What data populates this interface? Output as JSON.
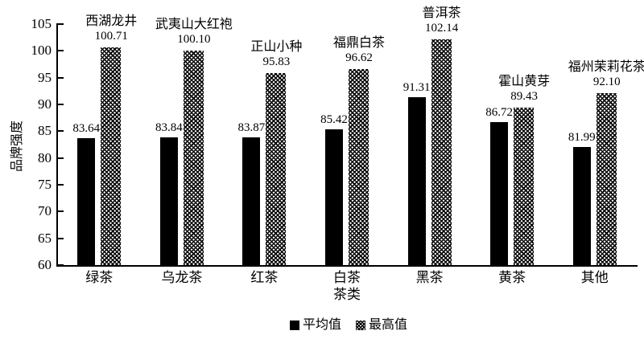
{
  "chart_data": {
    "type": "bar",
    "title": "",
    "xlabel": "茶类",
    "ylabel": "品牌强度",
    "ylim": [
      60,
      105
    ],
    "y_ticks": [
      60,
      65,
      70,
      75,
      80,
      85,
      90,
      95,
      100,
      105
    ],
    "grid": false,
    "legend_position": "bottom",
    "categories": [
      "绿茶",
      "乌龙茶",
      "红茶",
      "白茶",
      "黑茶",
      "黄茶",
      "其他"
    ],
    "series": [
      {
        "name": "平均值",
        "values": [
          83.64,
          83.84,
          83.87,
          85.42,
          91.31,
          86.72,
          81.99
        ],
        "labels": [
          "83.64",
          "83.84",
          "83.87",
          "85.42",
          "91.31",
          "86.72",
          "81.99"
        ],
        "style": "solid-black"
      },
      {
        "name": "最高值",
        "values": [
          100.71,
          100.1,
          95.83,
          96.62,
          102.14,
          89.43,
          92.1
        ],
        "labels": [
          "100.71",
          "100.10",
          "95.83",
          "96.62",
          "102.14",
          "89.43",
          "92.10"
        ],
        "top_tea_names": [
          "西湖龙井",
          "武夷山大红袍",
          "正山小种",
          "福鼎白茶",
          "普洱茶",
          "霍山黄芽",
          "福州茉莉花茶"
        ],
        "style": "crosshatch"
      }
    ],
    "colors": {
      "bar_mean": "#000000",
      "bar_max_pattern": "#000000",
      "background": "#ffffff",
      "text": "#000000"
    }
  }
}
